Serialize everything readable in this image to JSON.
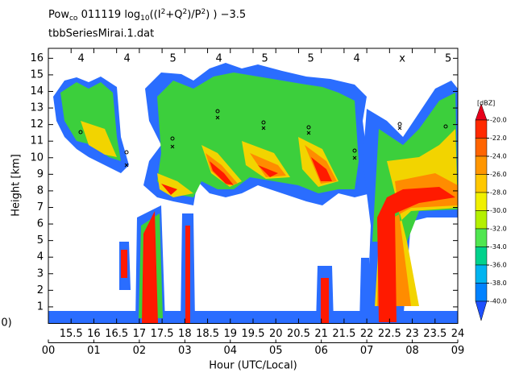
{
  "chart_data": {
    "type": "time-height",
    "title_parts": [
      "Pow",
      "co",
      " 011119  log",
      "10",
      "((I",
      "2",
      "+Q",
      "2",
      ")/P",
      "2",
      ") ) −3.5"
    ],
    "subtitle": "tbbSeriesMirai.1.dat",
    "y_label": "Height [km]",
    "x_label": "Hour (UTC/Local)",
    "edge_label": "0)",
    "xlim": [
      15,
      24
    ],
    "xticks": [
      15.5,
      16,
      16.5,
      17,
      17.5,
      18,
      18.5,
      19,
      19.5,
      20,
      20.5,
      21,
      21.5,
      22,
      22.5,
      23,
      23.5,
      24
    ],
    "local_ticks": [
      {
        "value": 15,
        "label": "00"
      },
      {
        "value": 16,
        "label": "01"
      },
      {
        "value": 17,
        "label": "02"
      },
      {
        "value": 18,
        "label": "03"
      },
      {
        "value": 19,
        "label": "04"
      },
      {
        "value": 20,
        "label": "05"
      },
      {
        "value": 21,
        "label": "06"
      },
      {
        "value": 22,
        "label": "07"
      },
      {
        "value": 23,
        "label": "08"
      },
      {
        "value": 24,
        "label": "09"
      }
    ],
    "ylim": [
      0,
      16.6
    ],
    "yticks": [
      1,
      2,
      3,
      4,
      5,
      6,
      7,
      8,
      9,
      10,
      11,
      12,
      13,
      14,
      15,
      16
    ],
    "top_labels": {
      "x": [
        15.72,
        16.73,
        17.74,
        18.75,
        19.76,
        20.77,
        21.78,
        22.78,
        23.79
      ],
      "labels": [
        "4",
        "4",
        "5",
        "4",
        "5",
        "5",
        "4",
        "x",
        "5"
      ]
    },
    "colorbar": {
      "label": "[dBZ]",
      "ticks": [
        {
          "value": -20,
          "label": "-20.0"
        },
        {
          "value": -22,
          "label": "-22.0"
        },
        {
          "value": -24,
          "label": "-24.0"
        },
        {
          "value": -26,
          "label": "-26.0"
        },
        {
          "value": -28,
          "label": "-28.0"
        },
        {
          "value": -30,
          "label": "-30.0"
        },
        {
          "value": -32,
          "label": "-32.0"
        },
        {
          "value": -34,
          "label": "-34.0"
        },
        {
          "value": -36,
          "label": "-36.0"
        },
        {
          "value": -38,
          "label": "-38.0"
        },
        {
          "value": -40,
          "label": "-40.0"
        }
      ],
      "colors": [
        "#e8001a",
        "#ff2a00",
        "#ff6400",
        "#ff9600",
        "#ffc800",
        "#f0f000",
        "#b4f000",
        "#50e650",
        "#00d28c",
        "#00b4f0",
        "#0082ff",
        "#1e50ff"
      ]
    }
  }
}
